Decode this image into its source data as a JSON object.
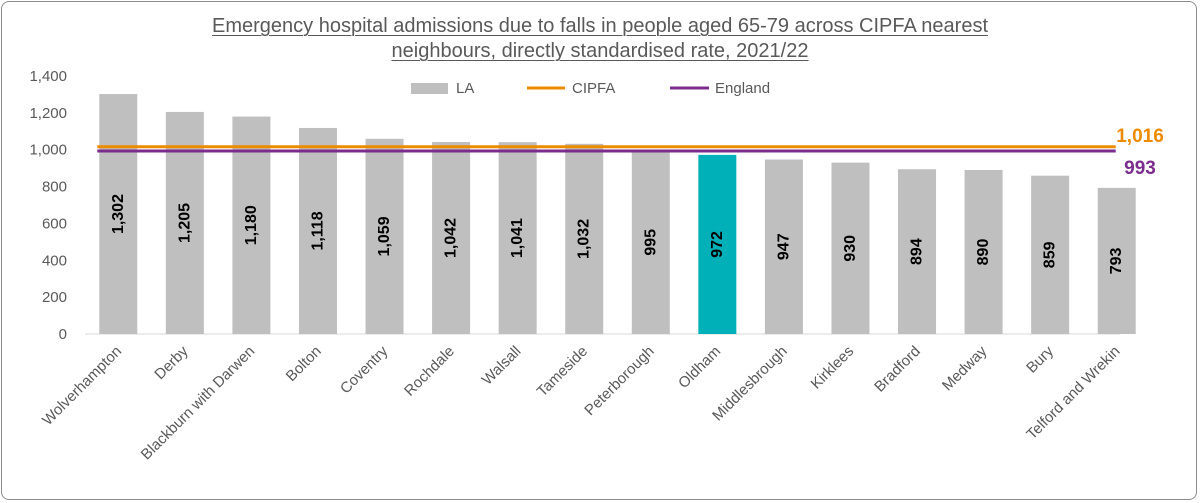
{
  "chart_data": {
    "type": "bar",
    "title_line1": "Emergency hospital admissions due to falls in people aged 65-79 across CIPFA nearest",
    "title_line2": "neighbours, directly standardised rate, 2021/22",
    "categories": [
      "Wolverhampton",
      "Derby",
      "Blackburn with Darwen",
      "Bolton",
      "Coventry",
      "Rochdale",
      "Walsall",
      "Tameside",
      "Peterborough",
      "Oldham",
      "Middlesbrough",
      "Kirklees",
      "Bradford",
      "Medway",
      "Bury",
      "Telford and Wrekin"
    ],
    "series": [
      {
        "name": "LA",
        "values": [
          1302,
          1205,
          1180,
          1118,
          1059,
          1042,
          1041,
          1032,
          995,
          972,
          947,
          930,
          894,
          890,
          859,
          793
        ],
        "value_labels": [
          "1,302",
          "1,205",
          "1,180",
          "1,118",
          "1,059",
          "1,042",
          "1,041",
          "1,032",
          "995",
          "972",
          "947",
          "930",
          "894",
          "890",
          "859",
          "793"
        ]
      },
      {
        "name": "CIPFA",
        "type": "line",
        "value": 1016,
        "value_label": "1,016"
      },
      {
        "name": "England",
        "type": "line",
        "value": 993,
        "value_label": "993"
      }
    ],
    "highlight_category": "Oldham",
    "ylim": [
      0,
      1400
    ],
    "yticks": [
      0,
      200,
      400,
      600,
      800,
      1000,
      1200,
      1400
    ],
    "ytick_labels": [
      "0",
      "200",
      "400",
      "600",
      "800",
      "1,000",
      "1,200",
      "1,400"
    ],
    "legend_position": "top-center",
    "grid": false,
    "xlabel": "",
    "ylabel": ""
  },
  "colors": {
    "bar": "#bfbfbf",
    "highlight": "#00b0b9",
    "cipfa": "#ed8b00",
    "england": "#7b2d8e"
  }
}
